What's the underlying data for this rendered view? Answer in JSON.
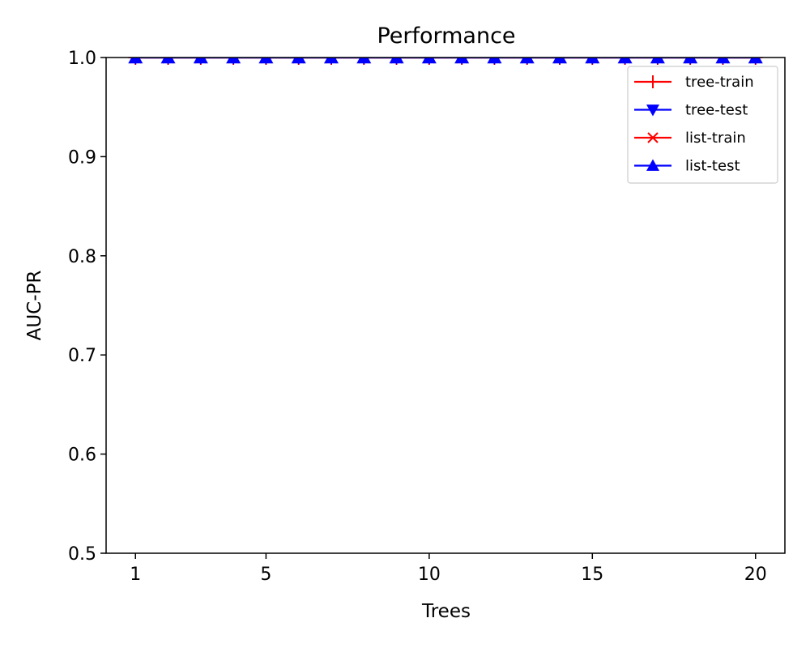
{
  "chart_data": {
    "type": "line",
    "title": "Performance",
    "xlabel": "Trees",
    "ylabel": "AUC-PR",
    "xlim": [
      0.1,
      20.9
    ],
    "ylim": [
      0.5,
      1.0
    ],
    "xticks": [
      1,
      5,
      10,
      15,
      20
    ],
    "yticks": [
      0.5,
      0.6,
      0.7,
      0.8,
      0.9,
      1.0
    ],
    "ytick_labels": [
      "0.5",
      "0.6",
      "0.7",
      "0.8",
      "0.9",
      "1.0"
    ],
    "grid": false,
    "legend_position": "top-right",
    "x": [
      1,
      2,
      3,
      4,
      5,
      6,
      7,
      8,
      9,
      10,
      11,
      12,
      13,
      14,
      15,
      16,
      17,
      18,
      19,
      20
    ],
    "series": [
      {
        "name": "tree-train",
        "color": "#ff0000",
        "marker": "plus",
        "values": [
          1.0,
          1.0,
          1.0,
          1.0,
          1.0,
          1.0,
          1.0,
          1.0,
          1.0,
          1.0,
          1.0,
          1.0,
          1.0,
          1.0,
          1.0,
          1.0,
          1.0,
          1.0,
          1.0,
          1.0
        ]
      },
      {
        "name": "tree-test",
        "color": "#0000ff",
        "marker": "triangle-down",
        "values": [
          1.0,
          1.0,
          1.0,
          1.0,
          1.0,
          1.0,
          1.0,
          1.0,
          1.0,
          1.0,
          1.0,
          1.0,
          1.0,
          1.0,
          1.0,
          1.0,
          1.0,
          1.0,
          1.0,
          1.0
        ]
      },
      {
        "name": "list-train",
        "color": "#ff0000",
        "marker": "x",
        "values": [
          1.0,
          1.0,
          1.0,
          1.0,
          1.0,
          1.0,
          1.0,
          1.0,
          1.0,
          1.0,
          1.0,
          1.0,
          1.0,
          1.0,
          1.0,
          1.0,
          1.0,
          1.0,
          1.0,
          1.0
        ]
      },
      {
        "name": "list-test",
        "color": "#0000ff",
        "marker": "triangle-up",
        "values": [
          1.0,
          1.0,
          1.0,
          1.0,
          1.0,
          1.0,
          1.0,
          1.0,
          1.0,
          1.0,
          1.0,
          1.0,
          1.0,
          1.0,
          1.0,
          1.0,
          1.0,
          1.0,
          1.0,
          1.0
        ]
      }
    ]
  }
}
